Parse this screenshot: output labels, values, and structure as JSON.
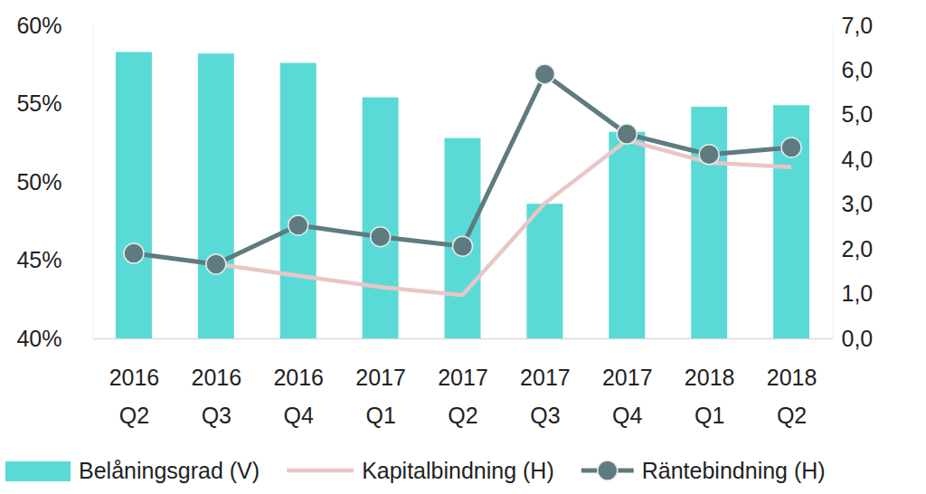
{
  "chart_data": {
    "type": "bar",
    "categories": [
      "2016 Q2",
      "2016 Q3",
      "2016 Q4",
      "2017 Q1",
      "2017 Q2",
      "2017 Q3",
      "2017 Q4",
      "2018 Q1",
      "2018 Q2"
    ],
    "series": [
      {
        "name": "Belåningsgrad (V)",
        "type": "bar",
        "axis": "y",
        "color": "#5adad7",
        "values": [
          58.3,
          58.2,
          57.6,
          55.4,
          52.8,
          48.6,
          53.2,
          54.8,
          54.9
        ]
      },
      {
        "name": "Kapitalbindning (H)",
        "type": "line",
        "axis": "y2",
        "color": "#e9c6c5",
        "values": [
          null,
          1.66,
          1.4,
          1.15,
          0.97,
          3.02,
          4.43,
          3.93,
          3.83
        ]
      },
      {
        "name": "Räntebindning (H)",
        "type": "line",
        "axis": "y2",
        "color": "#5f7b80",
        "marker": "circle",
        "values": [
          1.9,
          1.66,
          2.53,
          2.27,
          2.06,
          5.91,
          4.57,
          4.11,
          4.27
        ]
      }
    ],
    "ylim": [
      40,
      60
    ],
    "yticks": [
      {
        "value": 40,
        "label": "40%"
      },
      {
        "value": 45,
        "label": "45%"
      },
      {
        "value": 50,
        "label": "50%"
      },
      {
        "value": 55,
        "label": "55%"
      },
      {
        "value": 60,
        "label": "60%"
      }
    ],
    "y2lim": [
      0,
      7
    ],
    "y2ticks": [
      {
        "value": 0,
        "label": "0,0"
      },
      {
        "value": 1,
        "label": "1,0"
      },
      {
        "value": 2,
        "label": "2,0"
      },
      {
        "value": 3,
        "label": "3,0"
      },
      {
        "value": 4,
        "label": "4,0"
      },
      {
        "value": 5,
        "label": "5,0"
      },
      {
        "value": 6,
        "label": "6,0"
      },
      {
        "value": 7,
        "label": "7,0"
      }
    ],
    "grid": false,
    "legend": "bottom"
  }
}
